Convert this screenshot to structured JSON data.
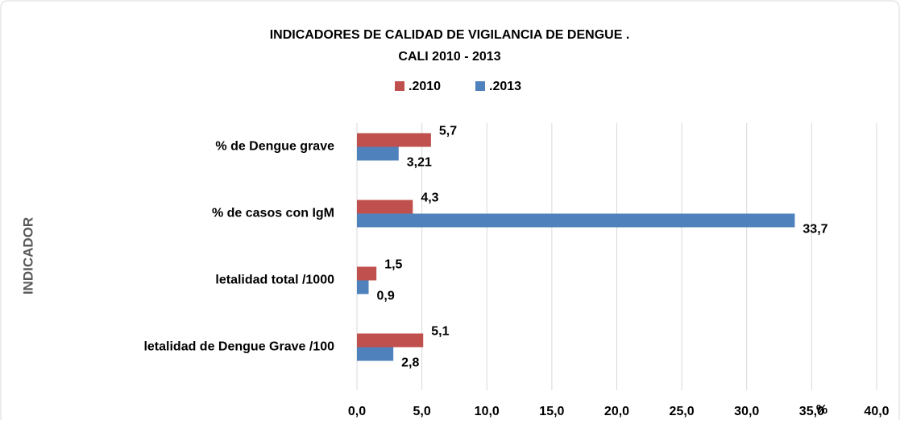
{
  "chart_data": {
    "type": "hbar",
    "title": "INDICADORES DE CALIDAD DE VIGILANCIA DE DENGUE .",
    "subtitle": "CALI 2010 - 2013",
    "x_label": "%",
    "y_label": "INDICADOR",
    "categories": [
      "% de Dengue grave",
      "% de casos con IgM",
      "letalidad total  /1000",
      "letalidad de Dengue Grave /100"
    ],
    "series": [
      {
        "name": ".2010",
        "color": "#c0504d",
        "values": [
          5.7,
          4.3,
          1.5,
          5.1
        ],
        "value_labels": [
          "5,7",
          "4,3",
          "1,5",
          "5,1"
        ]
      },
      {
        "name": ".2013",
        "color": "#4f81bd",
        "values": [
          3.21,
          33.7,
          0.9,
          2.8
        ],
        "value_labels": [
          "3,21",
          "33,7",
          "0,9",
          "2,8"
        ]
      }
    ],
    "xlim": [
      0,
      40
    ],
    "xticks": [
      {
        "value": 0,
        "label": "0,0"
      },
      {
        "value": 5,
        "label": "5,0"
      },
      {
        "value": 10,
        "label": "10,0"
      },
      {
        "value": 15,
        "label": "15,0"
      },
      {
        "value": 20,
        "label": "20,0"
      },
      {
        "value": 25,
        "label": "25,0"
      },
      {
        "value": 30,
        "label": "30,0"
      },
      {
        "value": 35,
        "label": "35,0"
      },
      {
        "value": 40,
        "label": "40,0"
      }
    ],
    "grid": true,
    "legend": "top"
  }
}
